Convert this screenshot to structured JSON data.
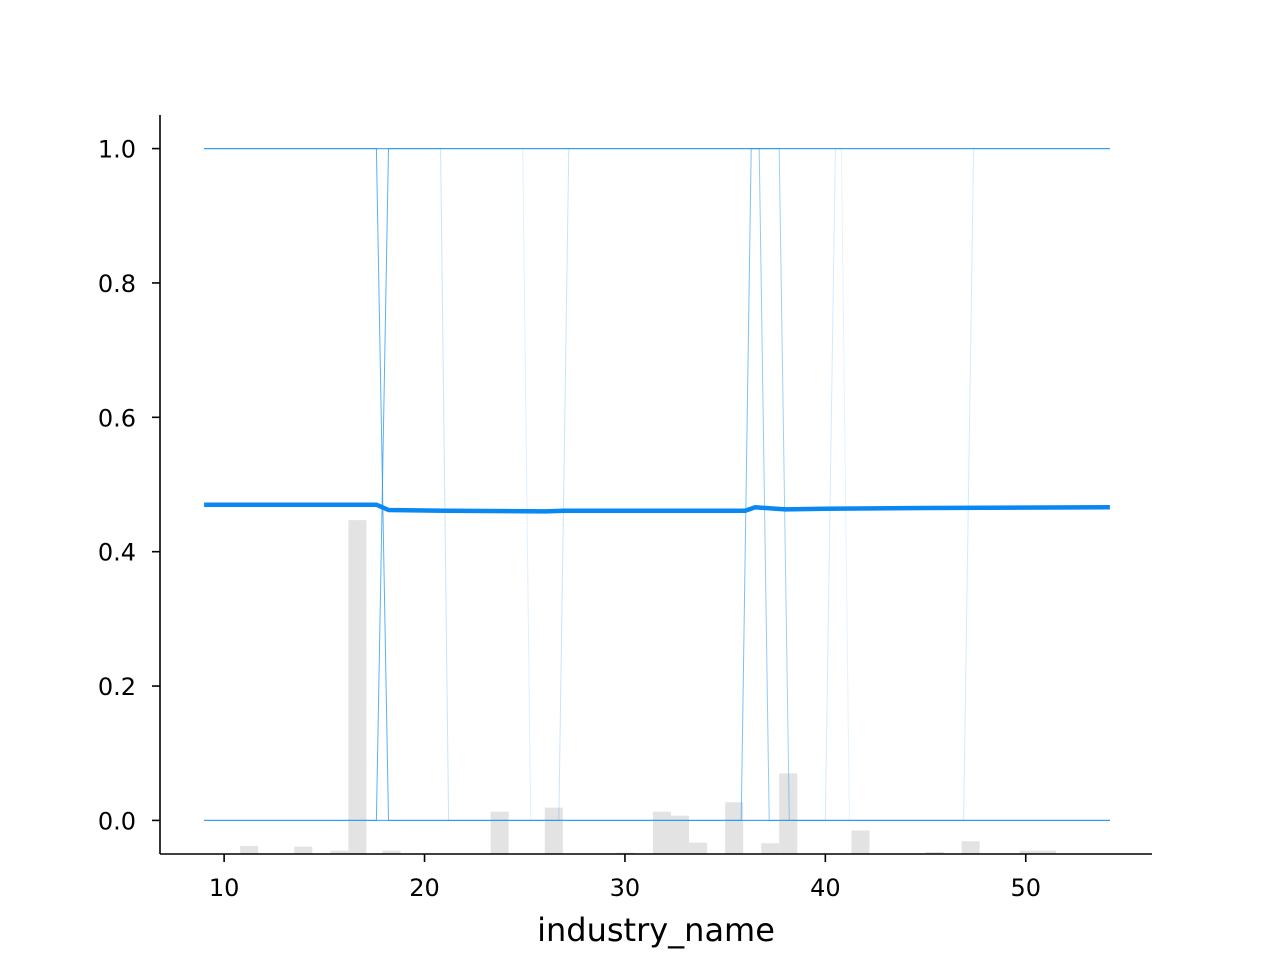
{
  "chart_data": {
    "type": "line",
    "title": "",
    "xlabel": "industry_name",
    "ylabel": "",
    "xlim": [
      6.8,
      56.3
    ],
    "ylim": [
      -0.05,
      1.05
    ],
    "xticks": [
      10,
      20,
      30,
      40,
      50
    ],
    "xtick_labels": [
      "10",
      "20",
      "30",
      "40",
      "50"
    ],
    "yticks": [
      0.0,
      0.2,
      0.4,
      0.6,
      0.8,
      1.0
    ],
    "ytick_labels": [
      "0.0",
      "0.2",
      "0.4",
      "0.6",
      "0.8",
      "1.0"
    ],
    "grid": false,
    "legend": "none",
    "colors": {
      "average_line": "#0a88f2",
      "ice_lines": "#2196f3",
      "histogram": "#e3e3e3",
      "axes": "#000000"
    },
    "series": [
      {
        "x": [
          9,
          17,
          17.6,
          18.2,
          21,
          26,
          27,
          30,
          35,
          36,
          36.5,
          38,
          40,
          45,
          54.2
        ],
        "values": [
          0.47,
          0.47,
          0.47,
          0.462,
          0.461,
          0.46,
          0.461,
          0.461,
          0.461,
          0.461,
          0.466,
          0.463,
          0.464,
          0.465,
          0.466
        ]
      }
    ],
    "ice_lines": [
      {
        "x": [
          9,
          17.6,
          18.2,
          54.2
        ],
        "values": [
          0,
          0,
          1,
          1
        ],
        "opacity": 0.75
      },
      {
        "x": [
          9,
          17.6,
          18.2,
          54.2
        ],
        "values": [
          1,
          1,
          0,
          0
        ],
        "opacity": 0.75
      },
      {
        "x": [
          9,
          20.8,
          21.2,
          54.2
        ],
        "values": [
          1,
          1,
          0,
          0
        ],
        "opacity": 0.25
      },
      {
        "x": [
          9,
          24.9,
          25.3,
          54.2
        ],
        "values": [
          1,
          1,
          0,
          0
        ],
        "opacity": 0.15
      },
      {
        "x": [
          9,
          26.7,
          27.2,
          54.2
        ],
        "values": [
          0,
          0,
          1,
          1
        ],
        "opacity": 0.25
      },
      {
        "x": [
          9,
          35.8,
          36.3,
          54.2
        ],
        "values": [
          0,
          0,
          1,
          1
        ],
        "opacity": 0.6
      },
      {
        "x": [
          9,
          36.7,
          37.2,
          54.2
        ],
        "values": [
          1,
          1,
          0,
          0
        ],
        "opacity": 0.5
      },
      {
        "x": [
          9,
          37.7,
          38.2,
          54.2
        ],
        "values": [
          1,
          1,
          0,
          0
        ],
        "opacity": 0.45
      },
      {
        "x": [
          9,
          40.0,
          40.5,
          54.2
        ],
        "values": [
          0,
          0,
          1,
          1
        ],
        "opacity": 0.2
      },
      {
        "x": [
          9,
          40.8,
          41.2,
          54.2
        ],
        "values": [
          1,
          1,
          0,
          0
        ],
        "opacity": 0.12
      },
      {
        "x": [
          9,
          46.9,
          47.4,
          54.2
        ],
        "values": [
          0,
          0,
          1,
          1
        ],
        "opacity": 0.2
      }
    ],
    "histogram": {
      "bins": [
        {
          "x0": 10.8,
          "x1": 11.7,
          "top": -0.038
        },
        {
          "x0": 13.5,
          "x1": 14.4,
          "top": -0.039
        },
        {
          "x0": 15.3,
          "x1": 16.2,
          "top": -0.045
        },
        {
          "x0": 16.2,
          "x1": 17.1,
          "top": 0.447
        },
        {
          "x0": 17.9,
          "x1": 18.8,
          "top": -0.045
        },
        {
          "x0": 23.3,
          "x1": 24.2,
          "top": 0.013
        },
        {
          "x0": 26.0,
          "x1": 26.9,
          "top": 0.019
        },
        {
          "x0": 29.6,
          "x1": 30.5,
          "top": -0.048
        },
        {
          "x0": 31.4,
          "x1": 32.3,
          "top": 0.013
        },
        {
          "x0": 32.3,
          "x1": 33.2,
          "top": 0.007
        },
        {
          "x0": 33.2,
          "x1": 34.1,
          "top": -0.033
        },
        {
          "x0": 35.0,
          "x1": 35.9,
          "top": 0.027
        },
        {
          "x0": 36.8,
          "x1": 37.7,
          "top": -0.034
        },
        {
          "x0": 37.7,
          "x1": 38.6,
          "top": 0.07
        },
        {
          "x0": 41.3,
          "x1": 42.2,
          "top": -0.015
        },
        {
          "x0": 45.0,
          "x1": 45.9,
          "top": -0.047
        },
        {
          "x0": 46.8,
          "x1": 47.7,
          "top": -0.031
        },
        {
          "x0": 49.7,
          "x1": 50.6,
          "top": -0.045
        },
        {
          "x0": 50.6,
          "x1": 51.5,
          "top": -0.045
        }
      ]
    }
  }
}
